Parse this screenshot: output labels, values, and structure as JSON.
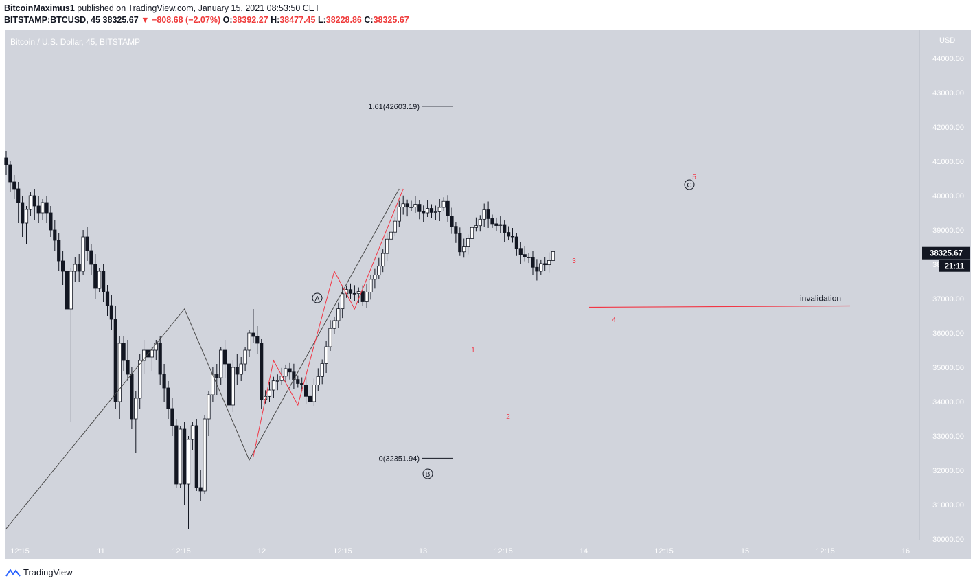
{
  "header": {
    "author": "BitcoinMaximus1",
    "published_text": "published on TradingView.com, January 15, 2021 08:53:50 CET",
    "symbol": "BITSTAMP:BTCUSD, 45",
    "last": "38325.67",
    "change": "−808.68 (−2.07%)",
    "o_label": "O:",
    "o_value": "38392.27",
    "h_label": "H:",
    "h_value": "38477.45",
    "l_label": "L:",
    "l_value": "38228.86",
    "c_label": "C:",
    "c_value": "38325.67"
  },
  "footer": {
    "brand": "TradingView"
  },
  "colors": {
    "bg": "#d1d4dc",
    "red": "#f23645",
    "candle_up": "#ffffff",
    "candle_down": "#131722",
    "wave_line": "#4a4a4a"
  },
  "chart_data": {
    "type": "candlestick",
    "title": "Bitcoin / U.S. Dollar, 45, BITSTAMP",
    "currency": "USD",
    "ylim": [
      30000,
      44500
    ],
    "y_ticks": [
      "44000.00",
      "43000.00",
      "42000.00",
      "41000.00",
      "40000.00",
      "39000.00",
      "38000.00",
      "37000.00",
      "36000.00",
      "35000.00",
      "34000.00",
      "33000.00",
      "32000.00",
      "31000.00",
      "30000.00"
    ],
    "x_ticks": [
      "12:15",
      "11",
      "12:15",
      "12",
      "12:15",
      "13",
      "12:15",
      "14",
      "12:15",
      "15",
      "12:15",
      "16"
    ],
    "price_label": "38325.67",
    "countdown_label": "21:11",
    "fib_levels": [
      {
        "label": "1.61(42603.19)",
        "value": 42603.19
      },
      {
        "label": "0(32351.94)",
        "value": 32351.94
      }
    ],
    "wave_labels_black": [
      "A",
      "B",
      "C"
    ],
    "wave_labels_red": [
      "1",
      "2",
      "3",
      "4",
      "5"
    ],
    "abc_path": [
      [
        0,
        30300
      ],
      [
        44,
        36700
      ],
      [
        60,
        32300
      ],
      [
        97,
        40200
      ]
    ],
    "impulse_path": [
      [
        61,
        32400
      ],
      [
        66,
        35200
      ],
      [
        72,
        33900
      ],
      [
        81,
        37800
      ],
      [
        86,
        36700
      ],
      [
        98,
        40200
      ]
    ],
    "invalidation": {
      "label": "invalidation",
      "value": 36750
    },
    "candles": [
      {
        "o": 41100,
        "h": 41300,
        "c": 40900,
        "l": 40600
      },
      {
        "o": 40900,
        "h": 41000,
        "c": 40400,
        "l": 40100
      },
      {
        "o": 40400,
        "h": 40600,
        "c": 40200,
        "l": 39900
      },
      {
        "o": 40200,
        "h": 40400,
        "c": 39800,
        "l": 39200
      },
      {
        "o": 39800,
        "h": 40000,
        "c": 39200,
        "l": 38800
      },
      {
        "o": 39200,
        "h": 39700,
        "c": 39600,
        "l": 38600
      },
      {
        "o": 39600,
        "h": 40100,
        "c": 40000,
        "l": 39400
      },
      {
        "o": 40000,
        "h": 40200,
        "c": 39700,
        "l": 39300
      },
      {
        "o": 39700,
        "h": 40000,
        "c": 39500,
        "l": 39200
      },
      {
        "o": 39500,
        "h": 39900,
        "c": 39800,
        "l": 39300
      },
      {
        "o": 39800,
        "h": 40000,
        "c": 39500,
        "l": 39200
      },
      {
        "o": 39500,
        "h": 39700,
        "c": 39000,
        "l": 38800
      },
      {
        "o": 39000,
        "h": 39300,
        "c": 38700,
        "l": 38400
      },
      {
        "o": 38700,
        "h": 38900,
        "c": 38100,
        "l": 37800
      },
      {
        "o": 38100,
        "h": 38400,
        "c": 37800,
        "l": 37400
      },
      {
        "o": 37800,
        "h": 38100,
        "c": 36700,
        "l": 36500
      },
      {
        "o": 36700,
        "h": 37900,
        "c": 37800,
        "l": 33400
      },
      {
        "o": 37800,
        "h": 38200,
        "c": 38000,
        "l": 37500
      },
      {
        "o": 38000,
        "h": 38300,
        "c": 37800,
        "l": 37500
      },
      {
        "o": 37800,
        "h": 39000,
        "c": 38800,
        "l": 37700
      },
      {
        "o": 38800,
        "h": 39100,
        "c": 38400,
        "l": 38100
      },
      {
        "o": 38400,
        "h": 38600,
        "c": 38000,
        "l": 37700
      },
      {
        "o": 38000,
        "h": 38300,
        "c": 37300,
        "l": 37000
      },
      {
        "o": 37300,
        "h": 37900,
        "c": 37800,
        "l": 37200
      },
      {
        "o": 37800,
        "h": 38000,
        "c": 37200,
        "l": 36900
      },
      {
        "o": 37200,
        "h": 37400,
        "c": 36800,
        "l": 36500
      },
      {
        "o": 36800,
        "h": 37100,
        "c": 36400,
        "l": 36100
      },
      {
        "o": 36400,
        "h": 36800,
        "c": 34000,
        "l": 33800
      },
      {
        "o": 34000,
        "h": 35900,
        "c": 35700,
        "l": 33500
      },
      {
        "o": 35700,
        "h": 35900,
        "c": 35200,
        "l": 34900
      },
      {
        "o": 35200,
        "h": 35800,
        "c": 34800,
        "l": 34600
      },
      {
        "o": 34800,
        "h": 35000,
        "c": 33500,
        "l": 33200
      },
      {
        "o": 33500,
        "h": 34300,
        "c": 34100,
        "l": 32500
      },
      {
        "o": 34100,
        "h": 35400,
        "c": 35200,
        "l": 33800
      },
      {
        "o": 35200,
        "h": 35800,
        "c": 35500,
        "l": 34800
      },
      {
        "o": 35500,
        "h": 35700,
        "c": 35300,
        "l": 35000
      },
      {
        "o": 35300,
        "h": 35600,
        "c": 35500,
        "l": 34900
      },
      {
        "o": 35500,
        "h": 35800,
        "c": 35700,
        "l": 35200
      },
      {
        "o": 35700,
        "h": 35900,
        "c": 34800,
        "l": 34500
      },
      {
        "o": 34800,
        "h": 35100,
        "c": 34400,
        "l": 34000
      },
      {
        "o": 34400,
        "h": 34600,
        "c": 33800,
        "l": 33500
      },
      {
        "o": 33800,
        "h": 34100,
        "c": 33300,
        "l": 33000
      },
      {
        "o": 33300,
        "h": 33500,
        "c": 31600,
        "l": 31500
      },
      {
        "o": 31600,
        "h": 33300,
        "c": 33200,
        "l": 31500
      },
      {
        "o": 33200,
        "h": 33400,
        "c": 31600,
        "l": 31000
      },
      {
        "o": 31600,
        "h": 33000,
        "c": 32900,
        "l": 30300
      },
      {
        "o": 32900,
        "h": 33400,
        "c": 33300,
        "l": 32600
      },
      {
        "o": 33300,
        "h": 33500,
        "c": 31500,
        "l": 31400
      },
      {
        "o": 31500,
        "h": 32000,
        "c": 31400,
        "l": 31100
      },
      {
        "o": 31400,
        "h": 33600,
        "c": 33500,
        "l": 31300
      },
      {
        "o": 33500,
        "h": 34300,
        "c": 34200,
        "l": 33000
      },
      {
        "o": 34200,
        "h": 35000,
        "c": 34800,
        "l": 34000
      },
      {
        "o": 34800,
        "h": 35100,
        "c": 34700,
        "l": 34200
      },
      {
        "o": 34700,
        "h": 35600,
        "c": 35500,
        "l": 34500
      },
      {
        "o": 35500,
        "h": 35800,
        "c": 35100,
        "l": 34700
      },
      {
        "o": 35100,
        "h": 35300,
        "c": 33900,
        "l": 33700
      },
      {
        "o": 33900,
        "h": 35200,
        "c": 35000,
        "l": 33700
      },
      {
        "o": 35000,
        "h": 35400,
        "c": 34800,
        "l": 34500
      },
      {
        "o": 34800,
        "h": 35300,
        "c": 35100,
        "l": 34600
      },
      {
        "o": 35100,
        "h": 35600,
        "c": 35500,
        "l": 34900
      },
      {
        "o": 35500,
        "h": 36100,
        "c": 36000,
        "l": 35300
      },
      {
        "o": 36000,
        "h": 36700,
        "c": 35900,
        "l": 35700
      },
      {
        "o": 35900,
        "h": 36200,
        "c": 35700,
        "l": 35400
      }
    ]
  }
}
